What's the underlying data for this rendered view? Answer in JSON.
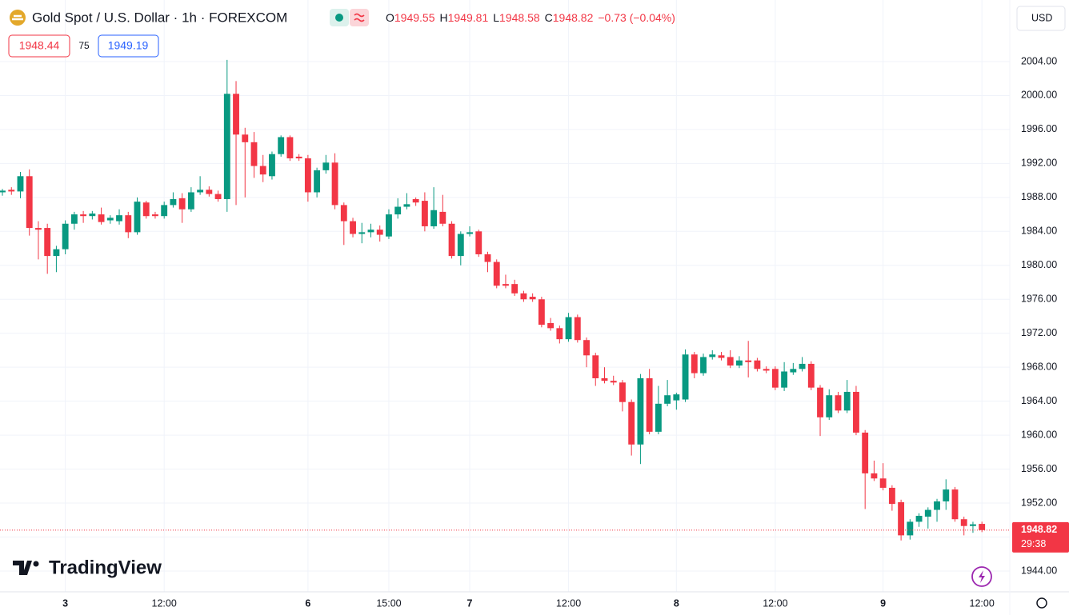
{
  "header": {
    "title": "Gold Spot / U.S. Dollar · 1h · FOREXCOM",
    "ohlc_labels": [
      "O",
      "H",
      "L",
      "C"
    ],
    "change": "−0.73 (−0.04%)",
    "bid": "1948.44",
    "spread": "75",
    "ask": "1949.19",
    "currency": "USD",
    "countdown": "29:38",
    "logo": "TradingView"
  },
  "chart_data": {
    "type": "candlestick",
    "up_color": "#089981",
    "down_color": "#f23645",
    "grid": true,
    "x": [
      0,
      1,
      2,
      3,
      4,
      5,
      6,
      7,
      8,
      9,
      10,
      11,
      12,
      13,
      14,
      15,
      16,
      17,
      18,
      19,
      20,
      21,
      22,
      23,
      24,
      25,
      26,
      27,
      28,
      29,
      30,
      31,
      32,
      33,
      34,
      35,
      36,
      37,
      38,
      39,
      40,
      41,
      42,
      43,
      44,
      45,
      46,
      47,
      48,
      49,
      50,
      51,
      52,
      53,
      54,
      55,
      56,
      57,
      58,
      59,
      60,
      61,
      62,
      63,
      64,
      65,
      66,
      67,
      68,
      69,
      70,
      71,
      72,
      73,
      74,
      75,
      76,
      77,
      78,
      79,
      80,
      81,
      82,
      83,
      84,
      85,
      86,
      87,
      88,
      89,
      90,
      91,
      92,
      93,
      94,
      95,
      96,
      97,
      98,
      99,
      100,
      101,
      102,
      103,
      104,
      105,
      106,
      107,
      108,
      109
    ],
    "open": [
      1988.6,
      1988.9,
      1988.7,
      1990.5,
      1984.4,
      1984.4,
      1981.1,
      1981.9,
      1984.9,
      1986.0,
      1985.8,
      1986.0,
      1985.3,
      1985.2,
      1985.9,
      1983.9,
      1987.4,
      1986.0,
      1985.8,
      1987.1,
      1987.9,
      1986.6,
      1988.6,
      1988.9,
      1988.4,
      1987.8,
      2000.2,
      1995.4,
      1994.5,
      1991.7,
      1990.5,
      1993.1,
      1995.1,
      1992.8,
      1992.6,
      1988.6,
      1991.2,
      1992.1,
      1987.1,
      1985.2,
      1983.7,
      1983.9,
      1984.2,
      1983.4,
      1986.0,
      1986.9,
      1987.8,
      1987.6,
      1984.6,
      1986.3,
      1984.9,
      1981.1,
      1983.7,
      1984.0,
      1981.3,
      1980.4,
      1977.8,
      1977.8,
      1976.7,
      1976.3,
      1976.0,
      1973.2,
      1972.6,
      1971.3,
      1973.9,
      1971.2,
      1969.4,
      1966.7,
      1966.4,
      1966.2,
      1963.9,
      1958.9,
      1966.7,
      1960.4,
      1963.7,
      1964.1,
      1964.2,
      1969.5,
      1967.3,
      1969.2,
      1969.4,
      1969.2,
      1968.2,
      1968.8,
      1968.8,
      1967.8,
      1967.8,
      1965.6,
      1967.4,
      1967.8,
      1968.4,
      1965.6,
      1962.1,
      1964.7,
      1962.9,
      1965.1,
      1960.3,
      1955.5,
      1954.9,
      1953.8,
      1952.1,
      1948.2,
      1949.8,
      1950.4,
      1951.2,
      1952.2,
      1953.6,
      1950.1,
      1949.3,
      1949.55
    ],
    "high": [
      1989.0,
      1989.2,
      1991.0,
      1991.3,
      1985.2,
      1984.9,
      1982.3,
      1985.3,
      1986.3,
      1986.4,
      1986.4,
      1986.8,
      1985.9,
      1986.6,
      1986.3,
      1988.0,
      1987.6,
      1986.3,
      1987.5,
      1988.6,
      1988.5,
      1989.2,
      1990.5,
      1989.3,
      1988.8,
      2004.2,
      2001.7,
      1996.2,
      1995.7,
      1993.0,
      1993.4,
      1995.3,
      1995.3,
      1993.1,
      1993.0,
      1991.5,
      1993.0,
      1993.2,
      1987.4,
      1985.6,
      1985.0,
      1984.9,
      1984.7,
      1986.6,
      1987.9,
      1988.5,
      1988.0,
      1988.6,
      1989.2,
      1988.3,
      1985.2,
      1984.0,
      1984.6,
      1984.2,
      1981.6,
      1980.7,
      1978.9,
      1978.3,
      1977.0,
      1976.7,
      1976.3,
      1973.8,
      1972.9,
      1974.4,
      1974.2,
      1971.5,
      1969.7,
      1968.0,
      1967.0,
      1966.5,
      1964.2,
      1967.2,
      1967.8,
      1965.8,
      1966.5,
      1965.0,
      1970.1,
      1969.8,
      1969.6,
      1970.0,
      1969.8,
      1970.0,
      1969.3,
      1971.1,
      1969.1,
      1968.1,
      1968.1,
      1968.6,
      1968.5,
      1969.2,
      1968.7,
      1965.9,
      1965.4,
      1965.1,
      1966.5,
      1965.8,
      1960.6,
      1957.0,
      1956.7,
      1954.1,
      1952.4,
      1950.1,
      1950.8,
      1951.5,
      1952.5,
      1954.8,
      1953.9,
      1950.4,
      1949.8,
      1949.81
    ],
    "low": [
      1988.2,
      1988.3,
      1987.9,
      1983.5,
      1980.7,
      1979.0,
      1979.2,
      1981.3,
      1984.2,
      1985.0,
      1985.4,
      1984.8,
      1984.9,
      1984.8,
      1983.2,
      1983.6,
      1985.5,
      1985.5,
      1985.5,
      1986.8,
      1985.0,
      1986.3,
      1988.3,
      1988.1,
      1987.5,
      1986.3,
      1987.1,
      1988.0,
      1990.3,
      1989.8,
      1990.1,
      1992.8,
      1992.3,
      1992.3,
      1987.5,
      1988.0,
      1990.8,
      1986.6,
      1982.4,
      1983.3,
      1982.6,
      1983.3,
      1982.8,
      1983.1,
      1985.5,
      1986.6,
      1987.0,
      1984.0,
      1984.3,
      1984.6,
      1980.8,
      1980.0,
      1983.4,
      1981.0,
      1979.2,
      1977.3,
      1977.3,
      1976.4,
      1975.7,
      1975.7,
      1972.7,
      1972.3,
      1970.8,
      1971.0,
      1970.9,
      1968.0,
      1965.8,
      1966.1,
      1965.9,
      1962.8,
      1957.6,
      1956.6,
      1960.1,
      1960.1,
      1963.4,
      1963.0,
      1963.9,
      1966.7,
      1967.0,
      1968.9,
      1968.8,
      1967.9,
      1967.9,
      1966.8,
      1967.5,
      1967.3,
      1965.3,
      1965.2,
      1967.1,
      1967.5,
      1965.3,
      1959.9,
      1961.8,
      1962.6,
      1962.6,
      1960.0,
      1951.3,
      1954.6,
      1953.5,
      1951.1,
      1947.6,
      1947.7,
      1949.2,
      1949.0,
      1949.8,
      1951.2,
      1949.8,
      1948.2,
      1948.5,
      1948.58
    ],
    "close": [
      1988.8,
      1988.7,
      1990.5,
      1984.4,
      1984.2,
      1981.1,
      1981.9,
      1984.9,
      1986.0,
      1985.8,
      1986.1,
      1985.1,
      1985.6,
      1985.9,
      1983.9,
      1987.5,
      1985.8,
      1985.8,
      1987.1,
      1987.8,
      1986.6,
      1988.6,
      1988.9,
      1988.4,
      1987.8,
      2000.2,
      1995.4,
      1994.5,
      1991.7,
      1990.7,
      1993.1,
      1995.1,
      1992.6,
      1992.6,
      1988.6,
      1991.2,
      1992.1,
      1987.1,
      1985.2,
      1983.7,
      1983.9,
      1984.2,
      1983.6,
      1986.0,
      1986.9,
      1987.2,
      1987.4,
      1984.6,
      1986.5,
      1984.9,
      1981.1,
      1983.7,
      1983.9,
      1981.3,
      1980.4,
      1977.6,
      1977.6,
      1976.7,
      1976.0,
      1976.0,
      1973.0,
      1972.6,
      1971.3,
      1973.9,
      1971.2,
      1969.4,
      1966.7,
      1966.4,
      1966.2,
      1963.9,
      1958.9,
      1966.7,
      1960.4,
      1963.7,
      1964.7,
      1964.8,
      1969.5,
      1967.3,
      1969.2,
      1969.5,
      1969.1,
      1968.2,
      1968.8,
      1968.6,
      1967.8,
      1967.6,
      1965.6,
      1967.5,
      1967.8,
      1968.4,
      1965.6,
      1962.1,
      1964.7,
      1962.9,
      1965.1,
      1960.3,
      1955.5,
      1954.9,
      1953.8,
      1951.9,
      1948.2,
      1949.8,
      1950.5,
      1951.2,
      1952.2,
      1953.6,
      1950.1,
      1949.3,
      1949.5,
      1948.82
    ],
    "xlim": [
      -0.27,
      112.1
    ],
    "ylim": [
      1941.55,
      2011.25
    ],
    "xticks": [
      {
        "value": 7,
        "label": "3"
      },
      {
        "value": 18,
        "label": "12:00"
      },
      {
        "value": 34,
        "label": "6"
      },
      {
        "value": 43,
        "label": "15:00"
      },
      {
        "value": 52,
        "label": "7"
      },
      {
        "value": 63,
        "label": "12:00"
      },
      {
        "value": 75,
        "label": "8"
      },
      {
        "value": 86,
        "label": "12:00"
      },
      {
        "value": 98,
        "label": "9"
      },
      {
        "value": 109,
        "label": "12:00"
      }
    ],
    "yticks": [
      {
        "value": 1944,
        "label": "1944.00"
      },
      {
        "value": 1948,
        "label": "1948.00"
      },
      {
        "value": 1952,
        "label": "1952.00"
      },
      {
        "value": 1956,
        "label": "1956.00"
      },
      {
        "value": 1960,
        "label": "1960.00"
      },
      {
        "value": 1964,
        "label": "1964.00"
      },
      {
        "value": 1968,
        "label": "1968.00"
      },
      {
        "value": 1972,
        "label": "1972.00"
      },
      {
        "value": 1976,
        "label": "1976.00"
      },
      {
        "value": 1980,
        "label": "1980.00"
      },
      {
        "value": 1984,
        "label": "1984.00"
      },
      {
        "value": 1988,
        "label": "1988.00"
      },
      {
        "value": 1992,
        "label": "1992.00"
      },
      {
        "value": 1996,
        "label": "1996.00"
      },
      {
        "value": 2000,
        "label": "2000.00"
      },
      {
        "value": 2004,
        "label": "2004.00"
      }
    ]
  }
}
